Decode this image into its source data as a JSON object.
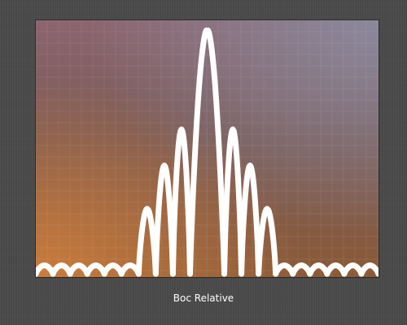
{
  "chart_data": {
    "type": "line",
    "title": "",
    "xlabel": "Boc Relative",
    "ylabel": "",
    "xlim": [
      -10,
      10
    ],
    "ylim": [
      0,
      1.04
    ],
    "grid": true,
    "legend": "none",
    "series": [
      {
        "style": "dotted-thick",
        "color": "#ffffff",
        "x": [
          -10.0,
          -9.5,
          -9.0,
          -8.5,
          -8.0,
          -7.5,
          -7.0,
          -6.5,
          -6.0,
          -5.5,
          -5.0,
          -4.5,
          -4.0,
          -3.5,
          -3.0,
          -2.5,
          -2.0,
          -1.5,
          -1.0,
          -0.5,
          0.0,
          0.5,
          1.0,
          1.5,
          2.0,
          2.5,
          3.0,
          3.5,
          4.0,
          4.5,
          5.0,
          5.5,
          6.0,
          6.5,
          7.0,
          7.5,
          8.0,
          8.5,
          9.0,
          9.5,
          10.0
        ],
        "y": [
          0.0,
          0.035,
          0.0,
          0.035,
          0.0,
          0.035,
          0.0,
          0.035,
          0.0,
          0.035,
          0.0,
          0.035,
          0.0,
          0.27,
          0.0,
          0.45,
          0.0,
          0.6,
          0.0,
          0.75,
          1.0,
          0.75,
          0.0,
          0.6,
          0.0,
          0.45,
          0.0,
          0.27,
          0.0,
          0.035,
          0.0,
          0.035,
          0.0,
          0.035,
          0.0,
          0.035,
          0.0,
          0.035,
          0.0,
          0.035,
          0.0
        ]
      }
    ]
  }
}
